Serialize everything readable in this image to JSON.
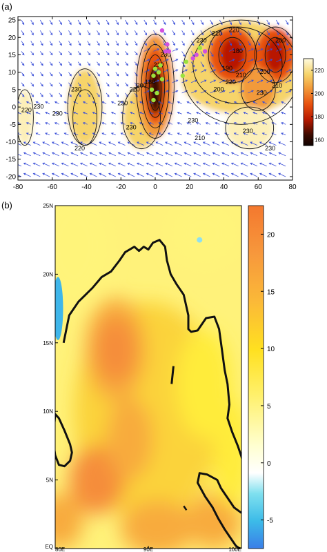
{
  "chart_data": [
    {
      "panel_label": "(a)",
      "type": "heatmap",
      "overlays": [
        "contour",
        "vector",
        "scatter"
      ],
      "x_ticks": [
        "-80",
        "-60",
        "-40",
        "-20",
        "0",
        "20",
        "40",
        "60",
        "80"
      ],
      "y_ticks": [
        "25",
        "20",
        "15",
        "10",
        "5",
        "0",
        "-5",
        "-10",
        "-15",
        "-20"
      ],
      "xlim": [
        -80,
        80
      ],
      "ylim": [
        -21,
        26
      ],
      "colorbar_ticks": [
        "220",
        "200",
        "180",
        "160"
      ],
      "colorbar_range": [
        155,
        230
      ],
      "contour_labels": [
        {
          "text": "220",
          "x": -75,
          "y": -1
        },
        {
          "text": "230",
          "x": -68,
          "y": 0
        },
        {
          "text": "230",
          "x": -46,
          "y": 5
        },
        {
          "text": "230",
          "x": -57,
          "y": -2
        },
        {
          "text": "220",
          "x": -44,
          "y": -12
        },
        {
          "text": "230",
          "x": -19,
          "y": 1
        },
        {
          "text": "220",
          "x": -12,
          "y": 5
        },
        {
          "text": "230",
          "x": -14,
          "y": -6
        },
        {
          "text": "200",
          "x": -8,
          "y": 6
        },
        {
          "text": "180",
          "x": -3,
          "y": 7
        },
        {
          "text": "210",
          "x": 2,
          "y": 12
        },
        {
          "text": "230",
          "x": 6,
          "y": 15
        },
        {
          "text": "230",
          "x": 22,
          "y": -4
        },
        {
          "text": "210",
          "x": 26,
          "y": -9
        },
        {
          "text": "230",
          "x": 27,
          "y": 19
        },
        {
          "text": "210",
          "x": 36,
          "y": 21
        },
        {
          "text": "220",
          "x": 46,
          "y": 22
        },
        {
          "text": "200",
          "x": 73,
          "y": 19
        },
        {
          "text": "190",
          "x": 42,
          "y": 11
        },
        {
          "text": "180",
          "x": 48,
          "y": 16
        },
        {
          "text": "200",
          "x": 37,
          "y": 5
        },
        {
          "text": "220",
          "x": 44,
          "y": 7
        },
        {
          "text": "210",
          "x": 50,
          "y": 9
        },
        {
          "text": "200",
          "x": 64,
          "y": 10
        },
        {
          "text": "230",
          "x": 62,
          "y": 4
        },
        {
          "text": "210",
          "x": 71,
          "y": 6
        },
        {
          "text": "230",
          "x": 54,
          "y": -7
        },
        {
          "text": "230",
          "x": 67,
          "y": -12
        }
      ],
      "olr_minima": [
        {
          "x": -76,
          "y": -3,
          "value": 225
        },
        {
          "x": -41,
          "y": 0,
          "value": 222
        },
        {
          "x": -8,
          "y": -3,
          "value": 223
        },
        {
          "x": 0,
          "y": 5,
          "value": 172
        },
        {
          "x": 45,
          "y": 15,
          "value": 182
        },
        {
          "x": 70,
          "y": 15,
          "value": 185
        },
        {
          "x": 60,
          "y": 5,
          "value": 200
        }
      ],
      "scatter_green": [
        {
          "x": -1,
          "y": 9
        },
        {
          "x": 2,
          "y": 10
        },
        {
          "x": 0,
          "y": 11
        },
        {
          "x": 4,
          "y": 8
        },
        {
          "x": -2,
          "y": 5
        },
        {
          "x": 1,
          "y": 4
        },
        {
          "x": -1,
          "y": 2
        },
        {
          "x": 3,
          "y": 12
        },
        {
          "x": 26,
          "y": 17
        },
        {
          "x": 16,
          "y": 9
        },
        {
          "x": 18,
          "y": 13
        }
      ],
      "scatter_magenta": [
        {
          "x": 4,
          "y": 22
        },
        {
          "x": 7,
          "y": 18
        },
        {
          "x": 6,
          "y": 16
        },
        {
          "x": 8,
          "y": 16
        },
        {
          "x": 22,
          "y": 14
        },
        {
          "x": 24,
          "y": 15
        },
        {
          "x": 29,
          "y": 16
        }
      ]
    },
    {
      "panel_label": "(b)",
      "type": "heatmap",
      "overlays": [
        "coastline"
      ],
      "x_ticks": [
        "80E",
        "90E",
        "100E"
      ],
      "y_ticks": [
        "25N",
        "20N",
        "15N",
        "10N",
        "5N",
        "EQ"
      ],
      "xlim": [
        80,
        100
      ],
      "ylim": [
        0,
        25
      ],
      "colorbar_ticks": [
        "20",
        "15",
        "10",
        "5",
        "0",
        "-5"
      ],
      "colorbar_range": [
        -7.5,
        22.5
      ],
      "anomaly_maxima": [
        {
          "x": 86.5,
          "y": 14.5,
          "value": 16
        },
        {
          "x": 84.5,
          "y": 5,
          "value": 14
        },
        {
          "x": 88,
          "y": 8,
          "value": 13
        },
        {
          "x": 91,
          "y": 1.5,
          "value": 13
        },
        {
          "x": 97,
          "y": 2,
          "value": 12
        },
        {
          "x": 80.5,
          "y": 2,
          "value": 12
        }
      ],
      "anomaly_minima": [
        {
          "x": 80.3,
          "y": 17.5,
          "value": -5
        },
        {
          "x": 95.5,
          "y": 22.5,
          "value": -4
        }
      ]
    }
  ]
}
